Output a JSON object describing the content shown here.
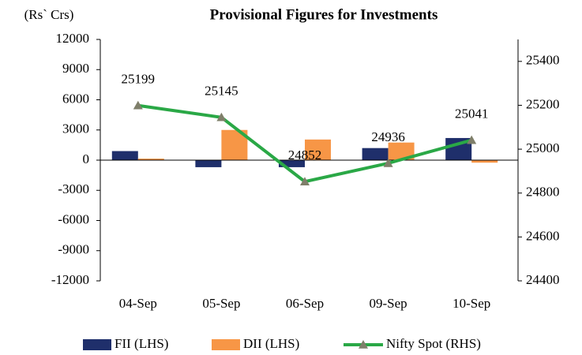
{
  "chart_data": {
    "type": "bar_line",
    "title": "Provisional Figures for Investments",
    "y_label": "(Rs` Crs)",
    "categories": [
      "04-Sep",
      "05-Sep",
      "06-Sep",
      "09-Sep",
      "10-Sep"
    ],
    "series": [
      {
        "name": "FII (LHS)",
        "type": "bar",
        "color": "#1f2f6b",
        "values": [
          900,
          -700,
          -700,
          1200,
          2200
        ]
      },
      {
        "name": "DII (LHS)",
        "type": "bar",
        "color": "#f79646",
        "values": [
          150,
          3000,
          2050,
          1750,
          -250
        ]
      },
      {
        "name": "Nifty Spot (RHS)",
        "type": "line",
        "axis": "y2",
        "color": "#2aa846",
        "marker_color": "#7f7f6a",
        "values": [
          25199,
          25145,
          24852,
          24936,
          25041
        ]
      }
    ],
    "ylim": [
      -12000,
      12000
    ],
    "yticks": [
      -12000,
      -9000,
      -6000,
      -3000,
      0,
      3000,
      6000,
      9000,
      12000
    ],
    "y2lim": [
      24400,
      25500
    ],
    "y2ticks": [
      24400,
      24600,
      24800,
      25000,
      25200,
      25400
    ],
    "grid": false,
    "legend": "bottom"
  }
}
